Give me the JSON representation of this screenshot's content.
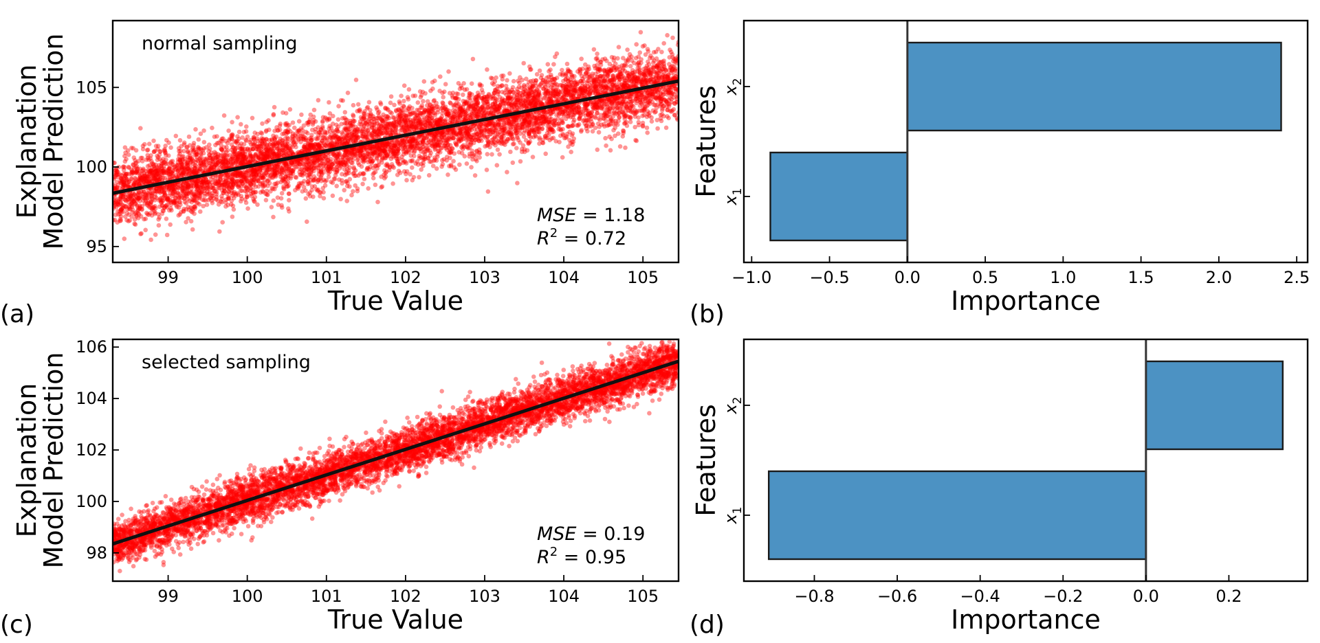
{
  "chart_data": [
    {
      "id": "a",
      "type": "scatter",
      "panel_label": "(a)",
      "annotation": "normal sampling",
      "xlabel": "True Value",
      "ylabel_lines": [
        "Explanation",
        "Model Prediction"
      ],
      "xlim": [
        98.3,
        105.45
      ],
      "ylim": [
        94,
        109.2
      ],
      "xticks": [
        99,
        100,
        101,
        102,
        103,
        104,
        105
      ],
      "yticks": [
        95,
        100,
        105
      ],
      "fit_line": {
        "x": [
          98.3,
          105.45
        ],
        "y": [
          98.35,
          105.4
        ]
      },
      "noise_sd": 1.09,
      "n_points": 7000,
      "point_color": "#ff0000",
      "line_color": "#111111",
      "metrics": {
        "mse_label": "MSE",
        "mse_value": "1.18",
        "r2_label": "R",
        "r2_exp": "2",
        "r2_value": "0.72"
      }
    },
    {
      "id": "b",
      "type": "bar",
      "orientation": "horizontal",
      "panel_label": "(b)",
      "xlabel": "Importance",
      "ylabel": "Features",
      "categories": [
        {
          "base": "x",
          "sub": "1"
        },
        {
          "base": "x",
          "sub": "2"
        }
      ],
      "values": [
        -0.88,
        2.4
      ],
      "xlim": [
        -1.05,
        2.57
      ],
      "xticks": [
        -1.0,
        -0.5,
        0.0,
        0.5,
        1.0,
        1.5,
        2.0,
        2.5
      ],
      "xtick_labels": [
        "−1.0",
        "−0.5",
        "0.0",
        "0.5",
        "1.0",
        "1.5",
        "2.0",
        "2.5"
      ],
      "bar_color": "#4c92c3"
    },
    {
      "id": "c",
      "type": "scatter",
      "panel_label": "(c)",
      "annotation": "selected sampling",
      "xlabel": "True Value",
      "ylabel_lines": [
        "Explanation",
        "Model Prediction"
      ],
      "xlim": [
        98.3,
        105.45
      ],
      "ylim": [
        96.9,
        106.3
      ],
      "xticks": [
        99,
        100,
        101,
        102,
        103,
        104,
        105
      ],
      "yticks": [
        98,
        100,
        102,
        104,
        106
      ],
      "fit_line": {
        "x": [
          98.3,
          105.45
        ],
        "y": [
          98.35,
          105.45
        ]
      },
      "noise_sd": 0.44,
      "n_points": 7000,
      "point_color": "#ff0000",
      "line_color": "#111111",
      "metrics": {
        "mse_label": "MSE",
        "mse_value": "0.19",
        "r2_label": "R",
        "r2_exp": "2",
        "r2_value": "0.95"
      }
    },
    {
      "id": "d",
      "type": "bar",
      "orientation": "horizontal",
      "panel_label": "(d)",
      "xlabel": "Importance",
      "ylabel": "Features",
      "categories": [
        {
          "base": "x",
          "sub": "1"
        },
        {
          "base": "x",
          "sub": "2"
        }
      ],
      "values": [
        -0.91,
        0.33
      ],
      "xlim": [
        -0.97,
        0.39
      ],
      "xticks": [
        -0.8,
        -0.6,
        -0.4,
        -0.2,
        0.0,
        0.2
      ],
      "xtick_labels": [
        "−0.8",
        "−0.6",
        "−0.4",
        "−0.2",
        "0.0",
        "0.2"
      ],
      "bar_color": "#4c92c3"
    }
  ]
}
